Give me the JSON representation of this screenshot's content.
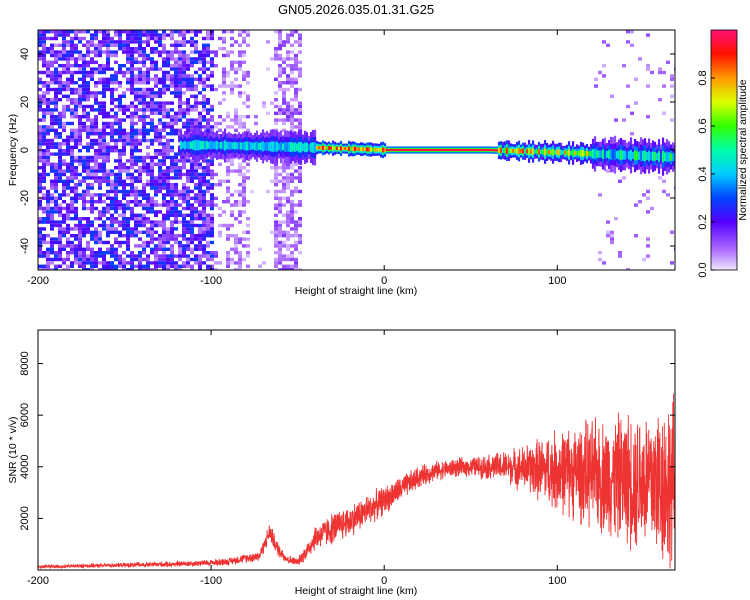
{
  "title": "GN05.2026.035.01.31.G25",
  "colors": {
    "snr_line": "#ee3333",
    "signal_band": "#ee2222",
    "noise": "#5500cc",
    "axis": "#000000"
  },
  "chart_data": [
    {
      "type": "heatmap",
      "title": "GN05.2026.035.01.31.G25",
      "xlabel": "Height of straight line (km)",
      "ylabel": "Frequency (Hz)",
      "xlim": [
        -200,
        168
      ],
      "ylim": [
        -50,
        50
      ],
      "x_ticks": [
        -200,
        -100,
        0,
        100
      ],
      "y_ticks": [
        -40,
        -20,
        0,
        20,
        40
      ],
      "colorbar": {
        "label": "Normalized spectral amplitude",
        "range": [
          0.0,
          1.0
        ],
        "ticks": [
          0.0,
          0.2,
          0.4,
          0.6,
          0.8
        ],
        "colormap": "hsv-rainbow"
      },
      "features": [
        {
          "name": "broadband noise",
          "x_range": [
            -200,
            -100
          ]
        },
        {
          "name": "noise column",
          "x_range": [
            -92,
            -78
          ]
        },
        {
          "name": "noise column",
          "x_range": [
            -65,
            -48
          ]
        },
        {
          "name": "signal band centre frequency",
          "x": [
            -100,
            -40,
            0,
            60,
            100,
            168
          ],
          "y": [
            2,
            1,
            0,
            0,
            -1,
            -3
          ]
        }
      ]
    },
    {
      "type": "line",
      "xlabel": "Height of straight line (km)",
      "ylabel": "SNR (10 * v/v)",
      "xlim": [
        -200,
        168
      ],
      "ylim": [
        0,
        9300
      ],
      "x_ticks": [
        -200,
        -100,
        0,
        100
      ],
      "y_ticks": [
        2000,
        4000,
        6000,
        8000
      ],
      "series": [
        {
          "name": "SNR",
          "x": [
            -200,
            -180,
            -160,
            -140,
            -120,
            -100,
            -90,
            -80,
            -72,
            -66,
            -62,
            -56,
            -50,
            -44,
            -40,
            -30,
            -20,
            -10,
            0,
            10,
            20,
            30,
            40,
            50,
            60,
            70,
            80,
            90,
            100,
            110,
            120,
            130,
            140,
            150,
            160,
            168
          ],
          "y": [
            120,
            150,
            180,
            200,
            230,
            280,
            330,
            460,
            550,
            1500,
            850,
            420,
            300,
            800,
            1250,
            1600,
            1900,
            2300,
            2700,
            3150,
            3600,
            3850,
            3950,
            4000,
            4000,
            4000,
            3950,
            3900,
            3850,
            3800,
            3700,
            3600,
            3550,
            3500,
            3400,
            3350
          ],
          "spread": [
            60,
            60,
            70,
            80,
            90,
            100,
            120,
            140,
            180,
            300,
            250,
            150,
            120,
            300,
            400,
            500,
            500,
            500,
            450,
            400,
            350,
            300,
            300,
            300,
            400,
            500,
            700,
            1000,
            1300,
            1500,
            1700,
            1900,
            2100,
            2300,
            2600,
            2800
          ]
        }
      ]
    }
  ]
}
